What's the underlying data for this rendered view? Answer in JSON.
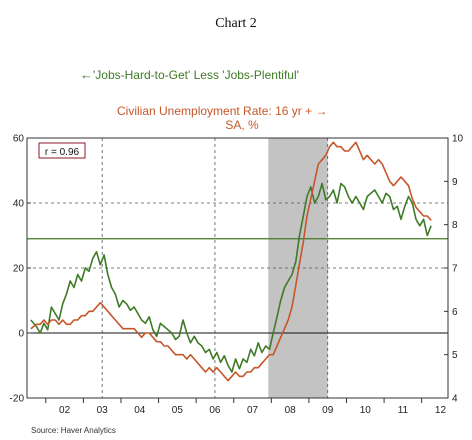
{
  "title": "Chart 2",
  "source": "Source: Haver Analytics",
  "colors": {
    "green": "#3f7a26",
    "orange": "#c5572a",
    "recession": "#c3c3c3",
    "refline": "#3f7a26",
    "grid": "#555555"
  },
  "chart_data": {
    "type": "line",
    "title": "Chart 2",
    "correlation_label": "r = 0.96",
    "legend_placement": "top-center",
    "x_categories": [
      "02",
      "03",
      "04",
      "05",
      "06",
      "07",
      "08",
      "09",
      "10",
      "11",
      "12"
    ],
    "x_range": [
      2001.5,
      2012.7
    ],
    "recession": [
      2007.92,
      2009.5
    ],
    "vertical_gridlines": [
      2003.5,
      2006.5,
      2009.5
    ],
    "y_left": {
      "ticks": [
        60,
        40,
        20,
        0,
        -20
      ],
      "range": [
        -20,
        60
      ],
      "zero_line": true,
      "reference_line": 29
    },
    "y_right": {
      "ticks": [
        10,
        9,
        8,
        7,
        6,
        5,
        4
      ],
      "range": [
        4,
        10
      ]
    },
    "series": [
      {
        "name": "'Jobs-Hard-to-Get' Less 'Jobs-Plentiful'",
        "arrow": "←",
        "axis": "left",
        "color": "green",
        "x": [
          2001.6,
          2001.75,
          2001.85,
          2001.95,
          2002.05,
          2002.15,
          2002.25,
          2002.35,
          2002.45,
          2002.55,
          2002.65,
          2002.75,
          2002.85,
          2002.95,
          2003.05,
          2003.15,
          2003.25,
          2003.35,
          2003.45,
          2003.55,
          2003.65,
          2003.75,
          2003.85,
          2003.95,
          2004.05,
          2004.15,
          2004.25,
          2004.35,
          2004.45,
          2004.55,
          2004.65,
          2004.75,
          2004.85,
          2004.95,
          2005.05,
          2005.15,
          2005.25,
          2005.35,
          2005.45,
          2005.55,
          2005.65,
          2005.75,
          2005.85,
          2005.95,
          2006.05,
          2006.15,
          2006.25,
          2006.35,
          2006.45,
          2006.55,
          2006.65,
          2006.75,
          2006.85,
          2006.95,
          2007.05,
          2007.15,
          2007.25,
          2007.35,
          2007.45,
          2007.55,
          2007.65,
          2007.75,
          2007.85,
          2007.95,
          2008.05,
          2008.15,
          2008.25,
          2008.35,
          2008.45,
          2008.55,
          2008.65,
          2008.75,
          2008.85,
          2008.95,
          2009.05,
          2009.15,
          2009.25,
          2009.35,
          2009.45,
          2009.55,
          2009.65,
          2009.75,
          2009.85,
          2009.95,
          2010.05,
          2010.15,
          2010.25,
          2010.35,
          2010.45,
          2010.55,
          2010.65,
          2010.75,
          2010.85,
          2010.95,
          2011.05,
          2011.15,
          2011.25,
          2011.35,
          2011.45,
          2011.55,
          2011.65,
          2011.75,
          2011.85,
          2011.95,
          2012.05,
          2012.15,
          2012.25
        ],
        "values": [
          4,
          2,
          0,
          3,
          1,
          8,
          6,
          4,
          9,
          12,
          16,
          14,
          18,
          16,
          20,
          19,
          23,
          25,
          21,
          24,
          18,
          14,
          12,
          8,
          10,
          9,
          7,
          8,
          6,
          4,
          3,
          5,
          1,
          -1,
          3,
          2,
          1,
          0,
          -2,
          -1,
          4,
          0,
          -3,
          -1,
          -3,
          -4,
          -6,
          -5,
          -8,
          -6,
          -9,
          -7,
          -10,
          -12,
          -8,
          -11,
          -8,
          -9,
          -5,
          -7,
          -3,
          -6,
          -4,
          -5,
          0,
          5,
          10,
          14,
          16,
          18,
          22,
          30,
          36,
          42,
          45,
          40,
          42,
          46,
          41,
          42,
          44,
          40,
          46,
          45,
          42,
          40,
          42,
          40,
          38,
          42,
          43,
          44,
          42,
          40,
          43,
          42,
          38,
          39,
          35,
          39,
          42,
          40,
          35,
          33,
          35,
          30,
          33
        ]
      },
      {
        "name": "Civilian Unemployment Rate: 16 yr + SA, %",
        "arrow": "→",
        "axis": "right",
        "color": "orange",
        "x": [
          2001.6,
          2001.75,
          2001.85,
          2001.95,
          2002.05,
          2002.15,
          2002.25,
          2002.35,
          2002.45,
          2002.55,
          2002.65,
          2002.75,
          2002.85,
          2002.95,
          2003.05,
          2003.15,
          2003.25,
          2003.35,
          2003.45,
          2003.55,
          2003.65,
          2003.75,
          2003.85,
          2003.95,
          2004.05,
          2004.15,
          2004.25,
          2004.35,
          2004.45,
          2004.55,
          2004.65,
          2004.75,
          2004.85,
          2004.95,
          2005.05,
          2005.15,
          2005.25,
          2005.35,
          2005.45,
          2005.55,
          2005.65,
          2005.75,
          2005.85,
          2005.95,
          2006.05,
          2006.15,
          2006.25,
          2006.35,
          2006.45,
          2006.55,
          2006.65,
          2006.75,
          2006.85,
          2006.95,
          2007.05,
          2007.15,
          2007.25,
          2007.35,
          2007.45,
          2007.55,
          2007.65,
          2007.75,
          2007.85,
          2007.95,
          2008.05,
          2008.15,
          2008.25,
          2008.35,
          2008.45,
          2008.55,
          2008.65,
          2008.75,
          2008.85,
          2008.95,
          2009.05,
          2009.15,
          2009.25,
          2009.35,
          2009.45,
          2009.55,
          2009.65,
          2009.75,
          2009.85,
          2009.95,
          2010.05,
          2010.15,
          2010.25,
          2010.35,
          2010.45,
          2010.55,
          2010.65,
          2010.75,
          2010.85,
          2010.95,
          2011.05,
          2011.15,
          2011.25,
          2011.35,
          2011.45,
          2011.55,
          2011.65,
          2011.75,
          2011.85,
          2011.95,
          2012.05,
          2012.15,
          2012.25
        ],
        "values": [
          5.6,
          5.7,
          5.7,
          5.8,
          5.7,
          5.8,
          5.8,
          5.7,
          5.8,
          5.7,
          5.7,
          5.8,
          5.8,
          5.9,
          5.9,
          6.0,
          6.0,
          6.1,
          6.2,
          6.1,
          6.0,
          5.9,
          5.8,
          5.7,
          5.6,
          5.6,
          5.6,
          5.6,
          5.5,
          5.4,
          5.5,
          5.5,
          5.4,
          5.3,
          5.3,
          5.2,
          5.2,
          5.1,
          5.0,
          5.0,
          5.0,
          4.9,
          5.0,
          4.9,
          4.8,
          4.7,
          4.6,
          4.7,
          4.6,
          4.7,
          4.6,
          4.5,
          4.4,
          4.5,
          4.6,
          4.5,
          4.5,
          4.6,
          4.6,
          4.7,
          4.7,
          4.8,
          4.9,
          5.0,
          5.0,
          5.2,
          5.4,
          5.6,
          5.8,
          6.1,
          6.6,
          7.1,
          7.6,
          8.2,
          8.6,
          9.0,
          9.4,
          9.5,
          9.6,
          9.8,
          9.9,
          9.8,
          9.8,
          9.7,
          9.7,
          9.8,
          9.9,
          9.7,
          9.5,
          9.6,
          9.5,
          9.4,
          9.5,
          9.4,
          9.2,
          9.0,
          8.9,
          9.0,
          9.1,
          9.0,
          8.9,
          8.6,
          8.4,
          8.3,
          8.2,
          8.2,
          8.1
        ]
      }
    ]
  }
}
